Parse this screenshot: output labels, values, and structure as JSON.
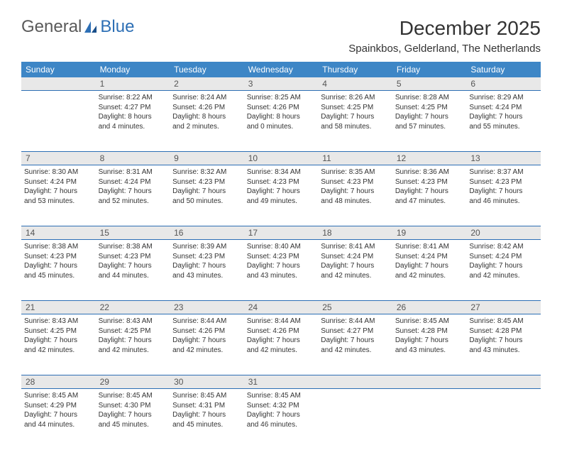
{
  "brand": {
    "part1": "General",
    "part2": "Blue"
  },
  "title": "December 2025",
  "location": "Spainkbos, Gelderland, The Netherlands",
  "colors": {
    "header_bg": "#3d86c6",
    "border": "#2d6fb5",
    "daynum_bg": "#e8e8e8",
    "text": "#333333",
    "background": "#ffffff"
  },
  "day_headers": [
    "Sunday",
    "Monday",
    "Tuesday",
    "Wednesday",
    "Thursday",
    "Friday",
    "Saturday"
  ],
  "weeks": [
    {
      "nums": [
        "",
        "1",
        "2",
        "3",
        "4",
        "5",
        "6"
      ],
      "cells": [
        {
          "sunrise": "",
          "sunset": "",
          "daylight1": "",
          "daylight2": ""
        },
        {
          "sunrise": "Sunrise: 8:22 AM",
          "sunset": "Sunset: 4:27 PM",
          "daylight1": "Daylight: 8 hours",
          "daylight2": "and 4 minutes."
        },
        {
          "sunrise": "Sunrise: 8:24 AM",
          "sunset": "Sunset: 4:26 PM",
          "daylight1": "Daylight: 8 hours",
          "daylight2": "and 2 minutes."
        },
        {
          "sunrise": "Sunrise: 8:25 AM",
          "sunset": "Sunset: 4:26 PM",
          "daylight1": "Daylight: 8 hours",
          "daylight2": "and 0 minutes."
        },
        {
          "sunrise": "Sunrise: 8:26 AM",
          "sunset": "Sunset: 4:25 PM",
          "daylight1": "Daylight: 7 hours",
          "daylight2": "and 58 minutes."
        },
        {
          "sunrise": "Sunrise: 8:28 AM",
          "sunset": "Sunset: 4:25 PM",
          "daylight1": "Daylight: 7 hours",
          "daylight2": "and 57 minutes."
        },
        {
          "sunrise": "Sunrise: 8:29 AM",
          "sunset": "Sunset: 4:24 PM",
          "daylight1": "Daylight: 7 hours",
          "daylight2": "and 55 minutes."
        }
      ]
    },
    {
      "nums": [
        "7",
        "8",
        "9",
        "10",
        "11",
        "12",
        "13"
      ],
      "cells": [
        {
          "sunrise": "Sunrise: 8:30 AM",
          "sunset": "Sunset: 4:24 PM",
          "daylight1": "Daylight: 7 hours",
          "daylight2": "and 53 minutes."
        },
        {
          "sunrise": "Sunrise: 8:31 AM",
          "sunset": "Sunset: 4:24 PM",
          "daylight1": "Daylight: 7 hours",
          "daylight2": "and 52 minutes."
        },
        {
          "sunrise": "Sunrise: 8:32 AM",
          "sunset": "Sunset: 4:23 PM",
          "daylight1": "Daylight: 7 hours",
          "daylight2": "and 50 minutes."
        },
        {
          "sunrise": "Sunrise: 8:34 AM",
          "sunset": "Sunset: 4:23 PM",
          "daylight1": "Daylight: 7 hours",
          "daylight2": "and 49 minutes."
        },
        {
          "sunrise": "Sunrise: 8:35 AM",
          "sunset": "Sunset: 4:23 PM",
          "daylight1": "Daylight: 7 hours",
          "daylight2": "and 48 minutes."
        },
        {
          "sunrise": "Sunrise: 8:36 AM",
          "sunset": "Sunset: 4:23 PM",
          "daylight1": "Daylight: 7 hours",
          "daylight2": "and 47 minutes."
        },
        {
          "sunrise": "Sunrise: 8:37 AM",
          "sunset": "Sunset: 4:23 PM",
          "daylight1": "Daylight: 7 hours",
          "daylight2": "and 46 minutes."
        }
      ]
    },
    {
      "nums": [
        "14",
        "15",
        "16",
        "17",
        "18",
        "19",
        "20"
      ],
      "cells": [
        {
          "sunrise": "Sunrise: 8:38 AM",
          "sunset": "Sunset: 4:23 PM",
          "daylight1": "Daylight: 7 hours",
          "daylight2": "and 45 minutes."
        },
        {
          "sunrise": "Sunrise: 8:38 AM",
          "sunset": "Sunset: 4:23 PM",
          "daylight1": "Daylight: 7 hours",
          "daylight2": "and 44 minutes."
        },
        {
          "sunrise": "Sunrise: 8:39 AM",
          "sunset": "Sunset: 4:23 PM",
          "daylight1": "Daylight: 7 hours",
          "daylight2": "and 43 minutes."
        },
        {
          "sunrise": "Sunrise: 8:40 AM",
          "sunset": "Sunset: 4:23 PM",
          "daylight1": "Daylight: 7 hours",
          "daylight2": "and 43 minutes."
        },
        {
          "sunrise": "Sunrise: 8:41 AM",
          "sunset": "Sunset: 4:24 PM",
          "daylight1": "Daylight: 7 hours",
          "daylight2": "and 42 minutes."
        },
        {
          "sunrise": "Sunrise: 8:41 AM",
          "sunset": "Sunset: 4:24 PM",
          "daylight1": "Daylight: 7 hours",
          "daylight2": "and 42 minutes."
        },
        {
          "sunrise": "Sunrise: 8:42 AM",
          "sunset": "Sunset: 4:24 PM",
          "daylight1": "Daylight: 7 hours",
          "daylight2": "and 42 minutes."
        }
      ]
    },
    {
      "nums": [
        "21",
        "22",
        "23",
        "24",
        "25",
        "26",
        "27"
      ],
      "cells": [
        {
          "sunrise": "Sunrise: 8:43 AM",
          "sunset": "Sunset: 4:25 PM",
          "daylight1": "Daylight: 7 hours",
          "daylight2": "and 42 minutes."
        },
        {
          "sunrise": "Sunrise: 8:43 AM",
          "sunset": "Sunset: 4:25 PM",
          "daylight1": "Daylight: 7 hours",
          "daylight2": "and 42 minutes."
        },
        {
          "sunrise": "Sunrise: 8:44 AM",
          "sunset": "Sunset: 4:26 PM",
          "daylight1": "Daylight: 7 hours",
          "daylight2": "and 42 minutes."
        },
        {
          "sunrise": "Sunrise: 8:44 AM",
          "sunset": "Sunset: 4:26 PM",
          "daylight1": "Daylight: 7 hours",
          "daylight2": "and 42 minutes."
        },
        {
          "sunrise": "Sunrise: 8:44 AM",
          "sunset": "Sunset: 4:27 PM",
          "daylight1": "Daylight: 7 hours",
          "daylight2": "and 42 minutes."
        },
        {
          "sunrise": "Sunrise: 8:45 AM",
          "sunset": "Sunset: 4:28 PM",
          "daylight1": "Daylight: 7 hours",
          "daylight2": "and 43 minutes."
        },
        {
          "sunrise": "Sunrise: 8:45 AM",
          "sunset": "Sunset: 4:28 PM",
          "daylight1": "Daylight: 7 hours",
          "daylight2": "and 43 minutes."
        }
      ]
    },
    {
      "nums": [
        "28",
        "29",
        "30",
        "31",
        "",
        "",
        ""
      ],
      "cells": [
        {
          "sunrise": "Sunrise: 8:45 AM",
          "sunset": "Sunset: 4:29 PM",
          "daylight1": "Daylight: 7 hours",
          "daylight2": "and 44 minutes."
        },
        {
          "sunrise": "Sunrise: 8:45 AM",
          "sunset": "Sunset: 4:30 PM",
          "daylight1": "Daylight: 7 hours",
          "daylight2": "and 45 minutes."
        },
        {
          "sunrise": "Sunrise: 8:45 AM",
          "sunset": "Sunset: 4:31 PM",
          "daylight1": "Daylight: 7 hours",
          "daylight2": "and 45 minutes."
        },
        {
          "sunrise": "Sunrise: 8:45 AM",
          "sunset": "Sunset: 4:32 PM",
          "daylight1": "Daylight: 7 hours",
          "daylight2": "and 46 minutes."
        },
        {
          "sunrise": "",
          "sunset": "",
          "daylight1": "",
          "daylight2": ""
        },
        {
          "sunrise": "",
          "sunset": "",
          "daylight1": "",
          "daylight2": ""
        },
        {
          "sunrise": "",
          "sunset": "",
          "daylight1": "",
          "daylight2": ""
        }
      ]
    }
  ]
}
